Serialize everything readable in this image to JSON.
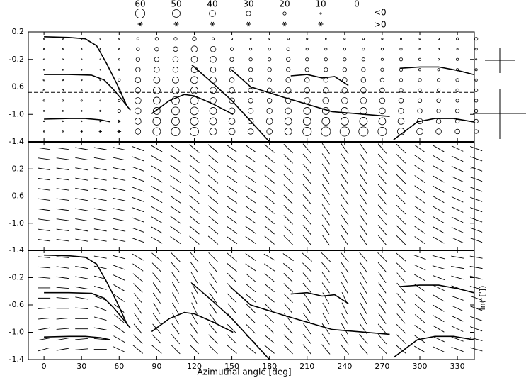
{
  "chart_data": [
    {
      "type": "bubble-grid",
      "xlim": [
        -12.5,
        343.5
      ],
      "ylim": [
        -1.4,
        0.2
      ],
      "yticks": [
        0.2,
        -0.2,
        -0.6,
        {
          "value": -1,
          "label": "-1.0"
        },
        -1.4
      ],
      "size_legend": {
        "values": [
          60,
          50,
          40,
          30,
          20,
          10,
          0
        ],
        "negative_label": "<0",
        "positive_label": ">0"
      },
      "reference_line": -0.68,
      "azimuth": [
        0,
        15,
        30,
        45,
        60,
        75,
        90,
        105,
        120,
        135,
        150,
        165,
        180,
        195,
        210,
        225,
        240,
        255,
        270,
        285,
        300,
        315,
        330,
        345
      ],
      "lnr": [
        0.1,
        -0.05,
        -0.2,
        -0.35,
        -0.5,
        -0.65,
        -0.8,
        -0.95,
        -1.1,
        -1.25
      ],
      "values": [
        [
          -5,
          -5,
          -3,
          -3,
          -5,
          -15,
          -20,
          -20,
          -25,
          -15,
          -10,
          -8,
          -8,
          -12,
          -10,
          -8,
          -10,
          -12,
          -10,
          -10,
          -10,
          -10,
          -15,
          -20
        ],
        [
          -5,
          -5,
          -5,
          -5,
          -8,
          -20,
          -25,
          -30,
          -40,
          -35,
          -20,
          -15,
          -15,
          -20,
          -15,
          -15,
          -15,
          -15,
          -15,
          -15,
          -10,
          -10,
          -10,
          -15
        ],
        [
          -8,
          -8,
          -5,
          -5,
          -10,
          -25,
          -30,
          -35,
          -40,
          -40,
          -25,
          -20,
          -20,
          -25,
          -20,
          -20,
          -20,
          -20,
          -15,
          -20,
          -15,
          -10,
          -15,
          -10
        ],
        [
          -8,
          -8,
          -8,
          -5,
          -10,
          -30,
          -35,
          -35,
          -40,
          -35,
          -30,
          -25,
          -25,
          -25,
          -25,
          -25,
          -25,
          -25,
          -20,
          -20,
          -15,
          -15,
          -15,
          -15
        ],
        [
          -10,
          -8,
          -8,
          -8,
          -15,
          -35,
          -40,
          -40,
          -45,
          -40,
          -30,
          -25,
          -25,
          -30,
          -30,
          -30,
          -30,
          -30,
          -25,
          -20,
          -20,
          -20,
          -20,
          -15
        ],
        [
          -10,
          -10,
          -8,
          -8,
          -15,
          -35,
          -45,
          -45,
          -45,
          -40,
          -35,
          -30,
          -30,
          -35,
          -35,
          -35,
          -35,
          -35,
          -30,
          -25,
          -20,
          -20,
          -20,
          -20
        ],
        [
          -10,
          -10,
          -10,
          -8,
          -15,
          -40,
          -45,
          -50,
          -50,
          -40,
          -35,
          -30,
          -30,
          -35,
          -40,
          -40,
          -40,
          -40,
          -35,
          -30,
          -25,
          -25,
          -20,
          -20
        ],
        [
          -8,
          -8,
          -8,
          -10,
          -20,
          -40,
          -45,
          -50,
          -50,
          -45,
          -40,
          -35,
          -35,
          -40,
          -45,
          -45,
          -45,
          -45,
          -40,
          -35,
          -30,
          -25,
          -25,
          -20
        ],
        [
          -5,
          -5,
          -5,
          10,
          20,
          -40,
          -50,
          -50,
          -50,
          -45,
          -40,
          -35,
          -40,
          -45,
          -50,
          -50,
          -50,
          -50,
          -45,
          -40,
          -35,
          -30,
          -25,
          -25
        ],
        [
          -5,
          -5,
          10,
          20,
          30,
          -35,
          -50,
          -55,
          -55,
          -45,
          -40,
          -35,
          -35,
          -45,
          -55,
          -60,
          -60,
          -60,
          -55,
          -45,
          -40,
          -35,
          -30,
          -25
        ]
      ],
      "curves": [
        {
          "azimuth": [
            0,
            20,
            33,
            42,
            50,
            58,
            66
          ],
          "lnr": [
            0.13,
            0.12,
            0.1,
            0.0,
            -0.26,
            -0.55,
            -0.87
          ]
        },
        {
          "azimuth": [
            0,
            20,
            38,
            48,
            55,
            62,
            69
          ],
          "lnr": [
            -0.42,
            -0.42,
            -0.43,
            -0.5,
            -0.63,
            -0.78,
            -0.94
          ]
        },
        {
          "azimuth": [
            0,
            20,
            33,
            45,
            53
          ],
          "lnr": [
            -1.07,
            -1.06,
            -1.06,
            -1.08,
            -1.11
          ]
        },
        {
          "azimuth": [
            86,
            100,
            112,
            120,
            135,
            151
          ],
          "lnr": [
            -0.99,
            -0.8,
            -0.71,
            -0.73,
            -0.85,
            -1.0
          ]
        },
        {
          "azimuth": [
            118,
            135,
            150,
            165,
            180
          ],
          "lnr": [
            -0.28,
            -0.55,
            -0.8,
            -1.1,
            -1.4
          ]
        },
        {
          "azimuth": [
            149,
            165,
            191,
            230,
            276
          ],
          "lnr": [
            -0.34,
            -0.6,
            -0.75,
            -0.96,
            -1.03
          ]
        },
        {
          "azimuth": [
            197,
            210,
            222,
            232,
            243
          ],
          "lnr": [
            -0.44,
            -0.42,
            -0.47,
            -0.45,
            -0.58
          ]
        },
        {
          "azimuth": [
            284,
            300,
            315,
            330,
            343
          ],
          "lnr": [
            -0.33,
            -0.31,
            -0.31,
            -0.36,
            -0.42
          ]
        },
        {
          "azimuth": [
            279,
            290,
            298,
            312,
            327,
            343
          ],
          "lnr": [
            -1.37,
            -1.22,
            -1.11,
            -1.06,
            -1.06,
            -1.11
          ]
        }
      ]
    },
    {
      "type": "vector-columns",
      "xlim": [
        -12.5,
        343.5
      ],
      "ylim": [
        -1.4,
        0.2
      ],
      "yticks": [
        0.2,
        -0.2,
        -0.6,
        {
          "value": -1,
          "label": "-1.0"
        },
        -1.4
      ],
      "azimuth": [
        0,
        15,
        30,
        45,
        60,
        75,
        90,
        105,
        120,
        135,
        150,
        165,
        180,
        195,
        210,
        225,
        240,
        255,
        270,
        285,
        300,
        315,
        330,
        345
      ],
      "lnr": [
        0.1,
        -0.05,
        -0.2,
        -0.35,
        -0.5,
        -0.65,
        -0.8,
        -0.95,
        -1.1,
        -1.25
      ],
      "angles": [
        -8,
        -8,
        -10,
        -10,
        -12,
        -20,
        -30,
        -35,
        -40,
        -40,
        -35,
        -35,
        -40,
        -45,
        -50,
        -55,
        -55,
        -55,
        -50,
        -45,
        -35,
        -30,
        -25,
        -20
      ]
    },
    {
      "type": "vector-grid",
      "xlim": [
        -12.5,
        343.5
      ],
      "ylim": [
        -1.4,
        0.2
      ],
      "yticks": [
        0.2,
        -0.2,
        -0.6,
        {
          "value": -1,
          "label": "-1.0"
        },
        -1.4
      ],
      "xticks": [
        0,
        30,
        60,
        90,
        120,
        150,
        180,
        210,
        240,
        270,
        300,
        330
      ],
      "x_label": "Azimuthal  angle  [deg]",
      "y_label": "ln(r['])",
      "azimuth": [
        0,
        15,
        30,
        45,
        60,
        75,
        90,
        105,
        120,
        135,
        150,
        165,
        180,
        195,
        210,
        225,
        240,
        255,
        270,
        285,
        300,
        315,
        330,
        345
      ],
      "lnr": [
        0.1,
        -0.05,
        -0.2,
        -0.35,
        -0.5,
        -0.65,
        -0.8,
        -0.95,
        -1.1,
        -1.25
      ],
      "angles": [
        [
          -5,
          -5,
          -8,
          -10,
          -15,
          -30,
          -40,
          -45,
          -50,
          -45,
          -40,
          -35,
          -30,
          -35,
          -40,
          -45,
          -50,
          -50,
          -45,
          -40,
          -20,
          -15,
          -10,
          -10
        ],
        [
          -5,
          -8,
          -10,
          -12,
          -20,
          -35,
          -45,
          -50,
          -55,
          -50,
          -40,
          -35,
          -35,
          -40,
          -45,
          -50,
          -55,
          -55,
          -50,
          -45,
          -25,
          -15,
          -10,
          -10
        ],
        [
          -5,
          -8,
          -10,
          -15,
          -25,
          -40,
          -50,
          -55,
          -60,
          -55,
          -45,
          -40,
          -40,
          -45,
          -50,
          -55,
          -60,
          -60,
          -55,
          -50,
          -30,
          -20,
          -15,
          -15
        ],
        [
          0,
          -5,
          -10,
          -15,
          -30,
          -45,
          -55,
          -60,
          -60,
          -55,
          -45,
          -40,
          -40,
          -45,
          -50,
          -55,
          -60,
          -60,
          -55,
          -50,
          -35,
          -25,
          -20,
          -15
        ],
        [
          0,
          -5,
          -10,
          -20,
          -35,
          -50,
          -55,
          -60,
          -65,
          -55,
          -45,
          -40,
          -40,
          -45,
          -55,
          -60,
          -65,
          -60,
          -55,
          -50,
          -40,
          -30,
          -20,
          -20
        ],
        [
          5,
          0,
          -5,
          -20,
          -40,
          -55,
          -60,
          -60,
          -65,
          -55,
          -50,
          -45,
          -45,
          -50,
          -55,
          -60,
          -65,
          -60,
          -55,
          -50,
          -40,
          -30,
          -25,
          -20
        ],
        [
          5,
          5,
          0,
          -15,
          -40,
          -55,
          -55,
          -60,
          -60,
          -55,
          -50,
          -45,
          -45,
          -50,
          -55,
          -60,
          -60,
          -60,
          -55,
          -50,
          -40,
          -30,
          -25,
          -20
        ],
        [
          10,
          5,
          0,
          -10,
          -35,
          -50,
          -50,
          -55,
          -55,
          -50,
          -45,
          -45,
          -45,
          -50,
          -55,
          -55,
          -60,
          -55,
          -50,
          -45,
          -35,
          -30,
          -25,
          -20
        ],
        [
          10,
          10,
          5,
          -5,
          -30,
          -45,
          -45,
          -50,
          -50,
          -45,
          -45,
          -40,
          -40,
          -45,
          -50,
          -55,
          -55,
          -50,
          -50,
          -45,
          -35,
          -25,
          -20,
          -15
        ],
        [
          15,
          10,
          5,
          0,
          -25,
          -40,
          -40,
          -45,
          -45,
          -45,
          -40,
          -40,
          -40,
          -45,
          -50,
          -50,
          -50,
          -50,
          -45,
          -40,
          -30,
          -25,
          -20,
          -15
        ]
      ]
    }
  ]
}
